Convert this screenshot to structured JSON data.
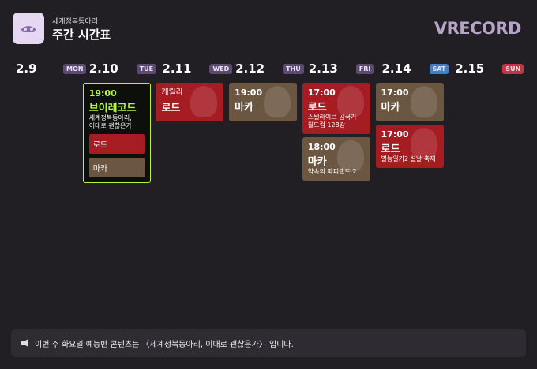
{
  "header": {
    "subtitle": "세계정복동아리",
    "title": "주간 시간표",
    "brand": "VRECORD"
  },
  "days": [
    {
      "date": "2.9",
      "weekday": "MON",
      "badge_color": "#5c4a73",
      "events": []
    },
    {
      "date": "2.10",
      "weekday": "TUE",
      "badge_color": "#5c4a73",
      "events": [
        {
          "time": "19:00",
          "title": "브이레코드",
          "lines": [
            "세계정복동아리,",
            "이대로 괜찮은가"
          ],
          "color": "#0d0f0b",
          "accent": "#b6f53b",
          "subitems": [
            {
              "title": "로드",
              "color": "#a51c23"
            },
            {
              "title": "마카",
              "color": "#6b5641"
            }
          ]
        }
      ]
    },
    {
      "date": "2.11",
      "weekday": "WED",
      "badge_color": "#5c4a73",
      "events": [
        {
          "label": "게릴라",
          "title": "로드",
          "color": "#a51c23"
        }
      ]
    },
    {
      "date": "2.12",
      "weekday": "THU",
      "badge_color": "#5c4a73",
      "events": [
        {
          "time": "19:00",
          "title": "마카",
          "color": "#6b5641"
        }
      ]
    },
    {
      "date": "2.13",
      "weekday": "FRI",
      "badge_color": "#5c4a73",
      "events": [
        {
          "time": "17:00",
          "title": "로드",
          "lines": [
            "스텔라이브 공국기",
            "월드컵 128강"
          ],
          "color": "#a51c23"
        },
        {
          "time": "18:00",
          "title": "마카",
          "lines": [
            "약속의 파피랜드 2"
          ],
          "color": "#6b5641"
        }
      ]
    },
    {
      "date": "2.14",
      "weekday": "SAT",
      "badge_color": "#3d82c9",
      "events": [
        {
          "time": "17:00",
          "title": "마카",
          "color": "#6b5641"
        },
        {
          "time": "17:00",
          "title": "로드",
          "lines": [
            "별농일기2 설날 축제"
          ],
          "color": "#a51c23"
        }
      ]
    },
    {
      "date": "2.15",
      "weekday": "SUN",
      "badge_color": "#c8323e",
      "events": []
    }
  ],
  "notice": "이번 주 화요일 예능반 콘텐츠는 〈세계정복동아리, 이대로 괜찮은가〉 입니다."
}
